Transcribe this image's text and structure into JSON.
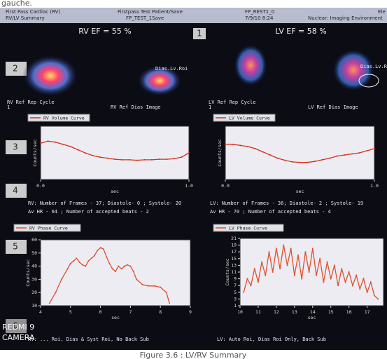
{
  "page_caption_top": "gauche.",
  "header": {
    "left": [
      "First Pass Cardiac (RV)",
      "RV/LV Summary"
    ],
    "center": [
      "Firstpass Test Patient/Save",
      "FP_TEST_1Save"
    ],
    "right": [
      "FP_REST1_0",
      "7/9/10 8:24"
    ],
    "far_right": [
      "Ele",
      "Nuclear: Imaging Environment"
    ]
  },
  "markers": [
    "1",
    "2",
    "3",
    "4",
    "5",
    "6"
  ],
  "ef": {
    "rv": "RV EF = 55 %",
    "lv": "LV EF = 58 %"
  },
  "image_labels": {
    "rv_rep": "RV Ref Rep Cycle",
    "rv_rep_num": "1",
    "rv_dias": "RV Ref Dias Image",
    "rv_roi": "Dias.Lv.Roi",
    "lv_rep": "LV Ref Rep Cycle",
    "lv_rep_num": "1",
    "lv_dias": "LV Ref Dias Image",
    "lv_roi": "Dias.Lv.Roi"
  },
  "info": {
    "rv": [
      "RV: Number of Frames - 37; Diastole- 0 ; Systole- 20",
      "Av HR - 64 ; Number of accepted beats - 2"
    ],
    "lv": [
      "LV: Number of Frames - 36; Diastole- 2 ; Systole- 19",
      "Av HR - 70 ; Number of accepted beats - 4"
    ]
  },
  "footer": {
    "rv": "RV: ... Roi, Dias & Syst Roi, No Back Sub",
    "lv": "LV: Auto Roi, Dias Roi Only, Back Sub"
  },
  "watermark": [
    "REDMI 9",
    "CAMERA"
  ],
  "caption": "Figure 3.6 : LV/RV Summary",
  "chart_data": [
    {
      "type": "line",
      "xlabel": "sec",
      "ylabel": "Counts/sec",
      "xlim": [
        0,
        1
      ],
      "ylim": [
        0,
        100
      ],
      "xticks": [
        {
          "value": 0,
          "label": "0.0"
        },
        {
          "value": 1,
          "label": "1.0"
        }
      ],
      "x": [
        0,
        0.05,
        0.1,
        0.15,
        0.2,
        0.25,
        0.3,
        0.35,
        0.4,
        0.45,
        0.5,
        0.55,
        0.6,
        0.65,
        0.7,
        0.75,
        0.8,
        0.85,
        0.9,
        0.95,
        1.0
      ],
      "series": [
        {
          "name": "RV Volume Curve",
          "color": "#d8301c",
          "values": [
            68,
            72,
            70,
            66,
            62,
            56,
            50,
            45,
            42,
            40,
            38,
            37,
            37,
            36,
            37,
            37,
            38,
            38,
            39,
            42,
            50
          ]
        }
      ]
    },
    {
      "type": "line",
      "xlabel": "sec",
      "ylabel": "Counts/sec",
      "xlim": [
        0,
        1
      ],
      "ylim": [
        0,
        100
      ],
      "xticks": [
        {
          "value": 0,
          "label": "0.0"
        },
        {
          "value": 1,
          "label": "1.0"
        }
      ],
      "x": [
        0,
        0.05,
        0.1,
        0.15,
        0.2,
        0.25,
        0.3,
        0.35,
        0.4,
        0.45,
        0.5,
        0.55,
        0.6,
        0.65,
        0.7,
        0.75,
        0.8,
        0.85,
        0.9,
        0.95,
        1.0
      ],
      "series": [
        {
          "name": "LV Volume Curve",
          "color": "#d8301c",
          "values": [
            66,
            66,
            64,
            62,
            58,
            52,
            46,
            40,
            36,
            33,
            32,
            32,
            34,
            37,
            40,
            44,
            46,
            48,
            50,
            54,
            58
          ]
        }
      ]
    },
    {
      "type": "line",
      "xlabel": "sec",
      "ylabel": "Counts/sec",
      "xlim": [
        4,
        9
      ],
      "ylim": [
        10,
        60
      ],
      "xticks": [
        4,
        5,
        6,
        7,
        8,
        9
      ],
      "yticks": [
        10,
        20,
        30,
        40,
        50,
        60
      ],
      "x": [
        4.3,
        4.5,
        4.7,
        4.9,
        5.0,
        5.1,
        5.2,
        5.3,
        5.4,
        5.5,
        5.6,
        5.7,
        5.8,
        5.9,
        6.0,
        6.1,
        6.2,
        6.3,
        6.4,
        6.5,
        6.6,
        6.7,
        6.8,
        6.9,
        7.0,
        7.1,
        7.2,
        7.4,
        7.6,
        7.8,
        8.0,
        8.2,
        8.3
      ],
      "series": [
        {
          "name": "RV Phase Curve",
          "color": "#e0502a",
          "values": [
            12,
            20,
            30,
            38,
            42,
            44,
            46,
            43,
            41,
            40,
            44,
            46,
            48,
            52,
            54,
            53,
            47,
            42,
            38,
            36,
            40,
            38,
            40,
            41,
            40,
            36,
            30,
            26,
            25,
            25,
            24,
            20,
            12
          ]
        }
      ]
    },
    {
      "type": "line",
      "xlabel": "sec",
      "ylabel": "Counts/sec",
      "xlim": [
        10,
        17.9
      ],
      "ylim": [
        1,
        21
      ],
      "xticks": [
        10,
        11,
        12,
        13,
        14,
        15,
        16,
        17
      ],
      "yticks": [
        1,
        3,
        5,
        7,
        9,
        11,
        13,
        15,
        17,
        19,
        21
      ],
      "x": [
        10.2,
        10.4,
        10.6,
        10.8,
        11.0,
        11.2,
        11.4,
        11.6,
        11.8,
        12.0,
        12.2,
        12.4,
        12.6,
        12.8,
        13.0,
        13.2,
        13.4,
        13.6,
        13.8,
        14.0,
        14.2,
        14.4,
        14.6,
        14.8,
        15.0,
        15.2,
        15.4,
        15.6,
        15.8,
        16.0,
        16.2,
        16.4,
        16.6,
        16.8,
        17.0,
        17.2,
        17.4,
        17.6
      ],
      "series": [
        {
          "name": "LV Phase Curve",
          "color": "#e0502a",
          "values": [
            5,
            9,
            7,
            12,
            8,
            14,
            10,
            17,
            11,
            18,
            12,
            19,
            13,
            18,
            10,
            16,
            9,
            17,
            11,
            18,
            10,
            15,
            8,
            14,
            9,
            13,
            7,
            12,
            8,
            11,
            7,
            10,
            6,
            9,
            5,
            8,
            4,
            3
          ]
        }
      ]
    }
  ]
}
